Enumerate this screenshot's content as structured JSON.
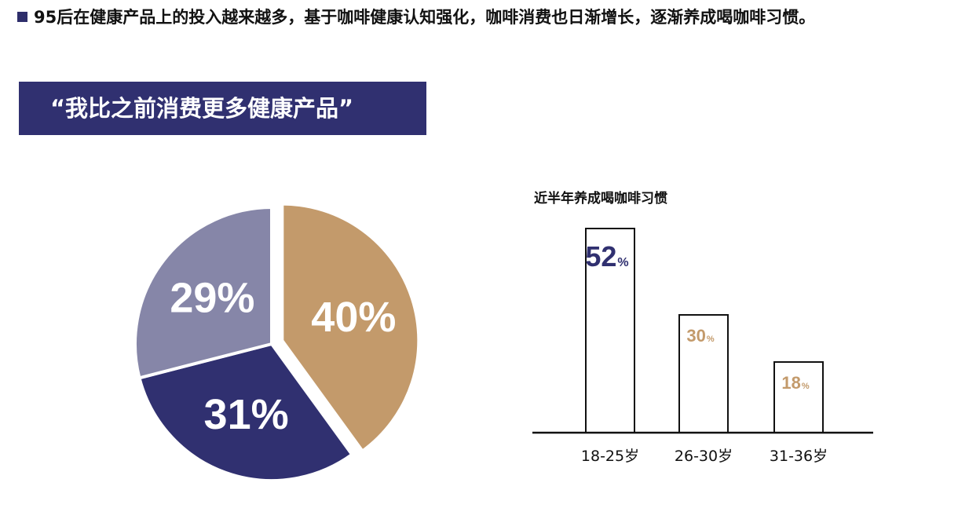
{
  "headline": "95后在健康产品上的投入越来越多，基于咖啡健康认知强化，咖啡消费也日渐增长，逐渐养成喝咖啡习惯。",
  "banner_title": "“我比之前消费更多健康产品”",
  "chart_data": [
    {
      "type": "pie",
      "title": "",
      "slices": [
        {
          "label": "40%",
          "value": 40,
          "color": "#c39a6b",
          "exploded": true
        },
        {
          "label": "31%",
          "value": 31,
          "color": "#303070",
          "exploded": false
        },
        {
          "label": "29%",
          "value": 29,
          "color": "#8686a8",
          "exploded": false
        }
      ]
    },
    {
      "type": "bar",
      "title": "近半年养成喝咖啡习惯",
      "categories": [
        "18-25岁",
        "26-30岁",
        "31-36岁"
      ],
      "values": [
        52,
        30,
        18
      ],
      "value_labels": [
        "52",
        "30",
        "18"
      ],
      "unit": "%",
      "label_colors": [
        "#303070",
        "#c39a6b",
        "#c39a6b"
      ],
      "bar_fill": "#ffffff",
      "bar_stroke": "#111111",
      "ylim": [
        0,
        55
      ]
    }
  ]
}
